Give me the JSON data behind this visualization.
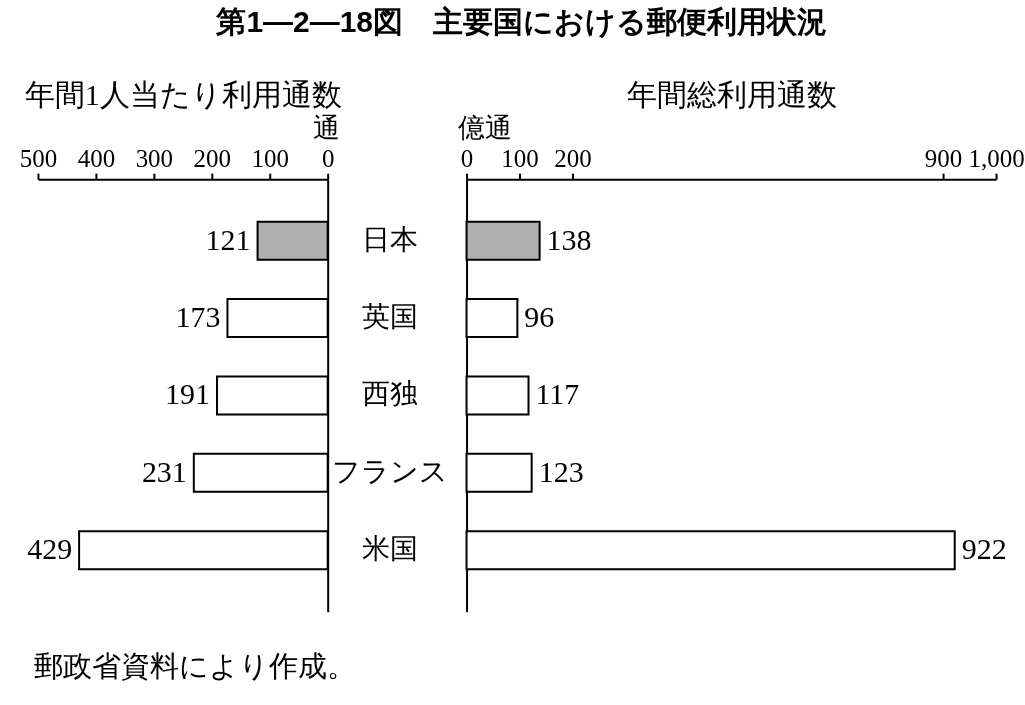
{
  "chart_data": [
    {
      "type": "bar",
      "orientation": "horizontal",
      "title": "第1―2―18図　主要国における郵便利用状況",
      "xlabel": "年間1人当たり利用通数",
      "categories": [
        "日本",
        "英国",
        "西独",
        "フランス",
        "米国"
      ],
      "values": [
        121,
        173,
        191,
        231,
        429
      ],
      "colors": [
        "#b0b0b0",
        "#ffffff",
        "#ffffff",
        "#ffffff",
        "#ffffff"
      ],
      "xlim": [
        500,
        0
      ],
      "xticks": [
        500,
        400,
        300,
        200,
        100,
        0
      ],
      "data_labels": true,
      "annotations": [
        "通"
      ]
    },
    {
      "type": "bar",
      "orientation": "horizontal",
      "xlabel": "年間総利用通数",
      "categories": [
        null,
        null,
        null,
        null,
        null
      ],
      "values": [
        138,
        96,
        117,
        123,
        922
      ],
      "colors": [
        "#b0b0b0",
        "#ffffff",
        "#ffffff",
        "#ffffff",
        "#ffffff"
      ],
      "xlim": [
        0,
        1000
      ],
      "xticks": [
        0,
        100,
        200,
        900,
        {
          "value": 1000,
          "label": "1,000"
        }
      ],
      "data_labels": true,
      "tick_labels": "x",
      "annotations": [
        "億通",
        "郵政省資料により作成。"
      ]
    }
  ]
}
